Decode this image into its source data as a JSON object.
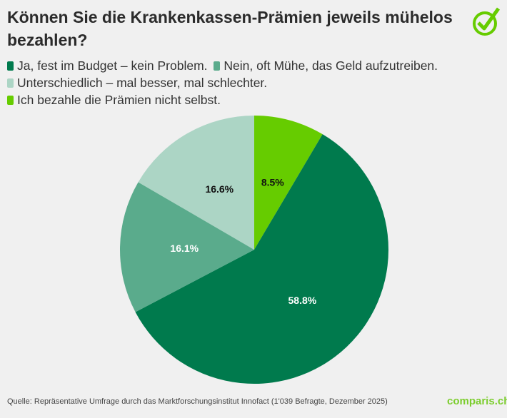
{
  "chart_data": {
    "type": "pie",
    "title": "Können Sie die Krankenkassen-Prämien jeweils mühelos bezahlen?",
    "legend_placement": "top",
    "start": "top, clockwise",
    "slices": [
      {
        "name": "Ich bezahle die Prämien nicht selbst.",
        "value": 8.5,
        "label": "8.5%",
        "color": "#66cc00",
        "label_color": "#111111"
      },
      {
        "name": "Ja, fest im Budget – kein Problem.",
        "value": 58.8,
        "label": "58.8%",
        "color": "#007a4d",
        "label_color": "#ffffff"
      },
      {
        "name": "Nein, oft Mühe, das Geld aufzutreiben.",
        "value": 16.1,
        "label": "16.1%",
        "color": "#5aab8c",
        "label_color": "#ffffff"
      },
      {
        "name": "Unterschiedlich – mal besser, mal schlechter.",
        "value": 16.6,
        "label": "16.6%",
        "color": "#acd5c5",
        "label_color": "#111111"
      }
    ],
    "legend": [
      {
        "label": "Ja, fest im Budget – kein Problem.",
        "color": "#007a4d"
      },
      {
        "label": "Nein, oft Mühe, das Geld aufzutreiben.",
        "color": "#5aab8c"
      },
      {
        "label": "Unterschiedlich – mal besser, mal schlechter.",
        "color": "#acd5c5"
      },
      {
        "label": "Ich bezahle die Prämien nicht selbst.",
        "color": "#66cc00"
      }
    ]
  },
  "footer": {
    "source": "Quelle: Repräsentative Umfrage durch das Marktforschungsinstitut Innofact (1'039 Befragte, Dezember 2025)"
  },
  "brand": {
    "name": "comparis.ch",
    "color": "#7ccd2e",
    "icon": "check-circle-icon"
  }
}
